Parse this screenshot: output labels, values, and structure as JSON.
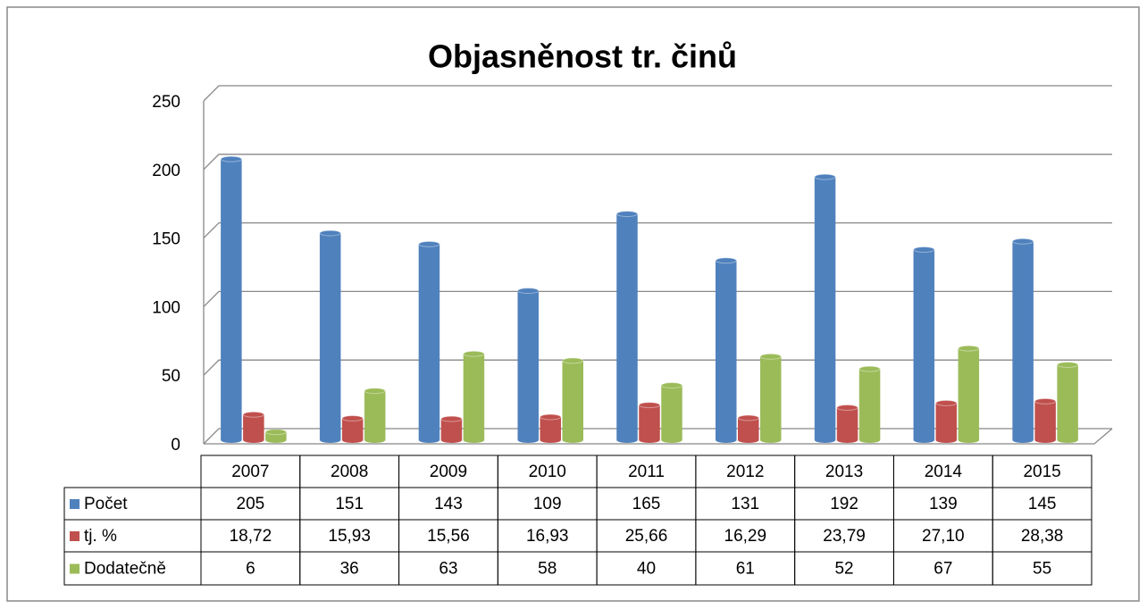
{
  "chart_data": {
    "type": "bar",
    "title": "Objasněnost tr. činů",
    "categories": [
      "2007",
      "2008",
      "2009",
      "2010",
      "2011",
      "2012",
      "2013",
      "2014",
      "2015"
    ],
    "series": [
      {
        "name": "Počet",
        "color": "#4f81bd",
        "values": [
          205,
          151,
          143,
          109,
          165,
          131,
          192,
          139,
          145
        ]
      },
      {
        "name": "tj. %",
        "color": "#c0504d",
        "values": [
          18.72,
          15.93,
          15.56,
          16.93,
          25.66,
          16.29,
          23.79,
          27.1,
          28.38
        ],
        "value_labels": [
          "18,72",
          "15,93",
          "15,56",
          "16,93",
          "25,66",
          "16,29",
          "23,79",
          "27,10",
          "28,38"
        ]
      },
      {
        "name": "Dodatečně",
        "color": "#9bbb59",
        "values": [
          6,
          36,
          63,
          58,
          40,
          61,
          52,
          67,
          55
        ]
      }
    ],
    "ylim": [
      0,
      250
    ],
    "yticks": [
      0,
      50,
      100,
      150,
      200,
      250
    ],
    "grid": true
  }
}
